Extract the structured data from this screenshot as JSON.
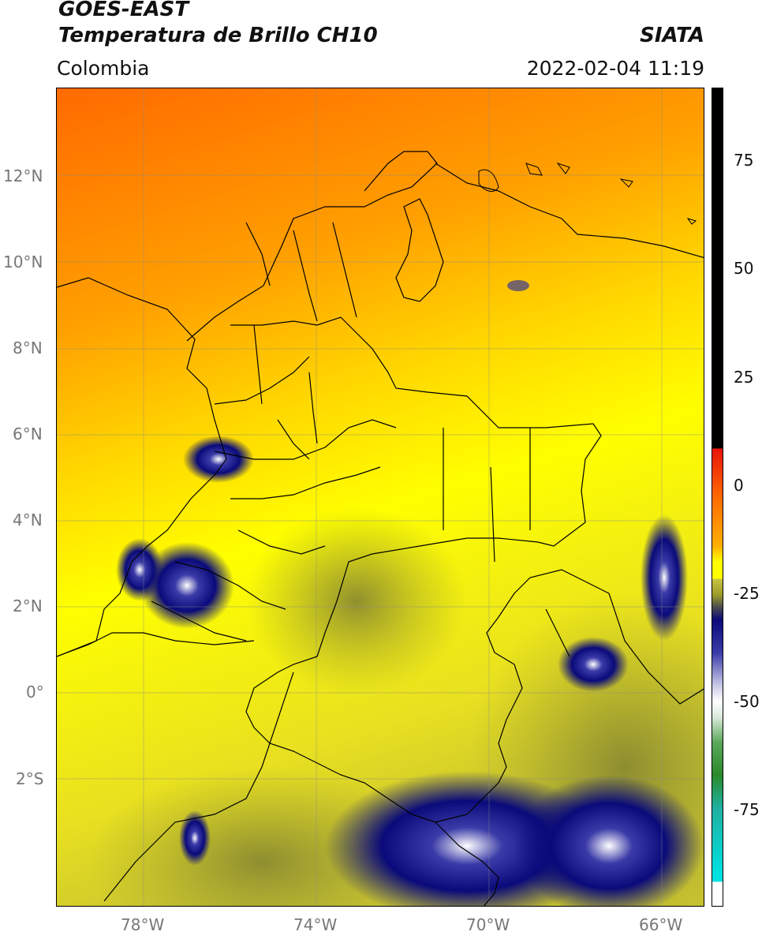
{
  "header": {
    "title_line1": "GOES-EAST",
    "title_line2": "Temperatura de Brillo CH10",
    "region": "Colombia",
    "source": "SIATA",
    "datetime": "2022-02-04 11:19"
  },
  "map": {
    "lat_ticks": [
      "12°N",
      "10°N",
      "8°N",
      "6°N",
      "4°N",
      "2°N",
      "0°",
      "2°S"
    ],
    "lon_ticks": [
      "78°W",
      "74°W",
      "70°W",
      "66°W"
    ],
    "lon_range": [
      -80,
      -65
    ],
    "lat_range": [
      -5,
      14
    ],
    "variable": "brightness temperature"
  },
  "colorbar": {
    "ticks": [
      "75",
      "50",
      "25",
      "0",
      "-25",
      "-50",
      "-75"
    ],
    "range": [
      -95,
      90
    ],
    "colors": {
      "black": "#000000",
      "red": "#e8140a",
      "orange": "#ff8c00",
      "yellow": "#ffff00",
      "olive": "#9a9a2a",
      "navy": "#0a0a7a",
      "white": "#ffffff",
      "green": "#2a8a2a",
      "cyan": "#00e0e0"
    }
  }
}
